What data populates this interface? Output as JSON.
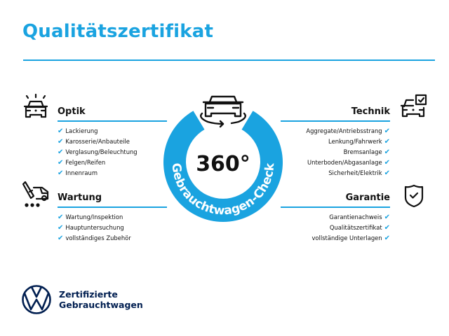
{
  "title": "Qualitätszertifikat",
  "colors": {
    "accent": "#1aa3e0",
    "brand_navy": "#001e50",
    "text": "#111111"
  },
  "badge": {
    "number": "360°",
    "arc_text": "Gebrauchtwagen-Check",
    "icon": "car-rotate-icon"
  },
  "sections": {
    "optik": {
      "heading": "Optik",
      "icon": "car-lights-icon",
      "items": [
        "Lackierung",
        "Karosserie/Anbauteile",
        "Verglasung/Beleuchtung",
        "Felgen/Reifen",
        "Innenraum"
      ]
    },
    "wartung": {
      "heading": "Wartung",
      "icon": "service-car-icon",
      "items": [
        "Wartung/Inspektion",
        "Hauptuntersuchung",
        "vollständiges Zubehör"
      ]
    },
    "technik": {
      "heading": "Technik",
      "icon": "car-checklist-icon",
      "items": [
        "Aggregate/Antriebsstrang",
        "Lenkung/Fahrwerk",
        "Bremsanlage",
        "Unterboden/Abgasanlage",
        "Sicherheit/Elektrik"
      ]
    },
    "garantie": {
      "heading": "Garantie",
      "icon": "shield-check-icon",
      "items": [
        "Garantienachweis",
        "Qualitätszertifikat",
        "vollständige Unterlagen"
      ]
    }
  },
  "check_glyph": "✔",
  "footer": {
    "line1": "Zertifizierte",
    "line2": "Gebrauchtwagen",
    "logo": "vw-logo"
  }
}
